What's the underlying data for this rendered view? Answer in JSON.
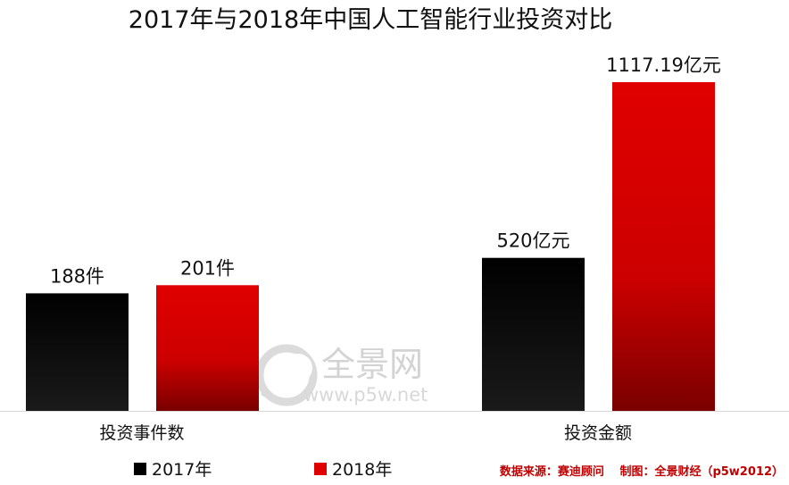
{
  "chart_data": {
    "type": "bar",
    "title": "2017年与2018年中国人工智能行业投资对比",
    "categories": [
      "投资事件数",
      "投资金额"
    ],
    "series": [
      {
        "name": "2017年",
        "values": [
          188,
          520
        ],
        "labels": [
          "188件",
          "520亿元"
        ],
        "color": "#000000"
      },
      {
        "name": "2018年",
        "values": [
          201,
          1117.19
        ],
        "labels": [
          "201件",
          "1117.19亿元"
        ],
        "color": "#e00000"
      }
    ],
    "group_ylim": [
      [
        0,
        560
      ],
      [
        0,
        1190
      ]
    ],
    "grid": false,
    "legend_position": "bottom-left"
  },
  "source_note": "数据来源：赛迪顾问　 制图：全景财经（p5w2012）",
  "watermark": {
    "text": "全景网",
    "url": "www.p5w.net"
  }
}
